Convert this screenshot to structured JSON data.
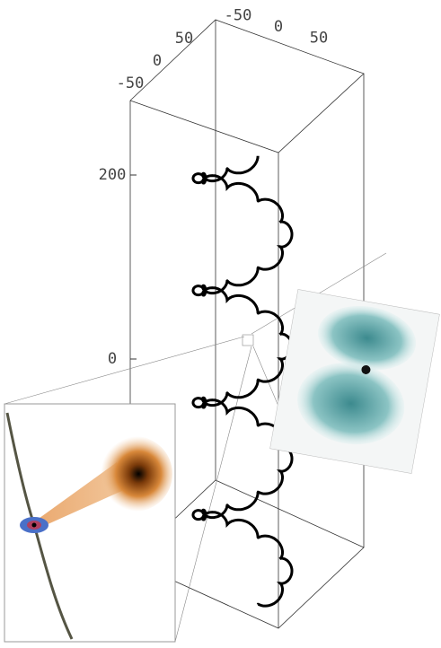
{
  "axes": {
    "x_ticks": [
      -50,
      0,
      50
    ],
    "y_ticks": [
      50,
      0,
      -50
    ],
    "z_ticks": [
      200,
      0
    ]
  }
}
